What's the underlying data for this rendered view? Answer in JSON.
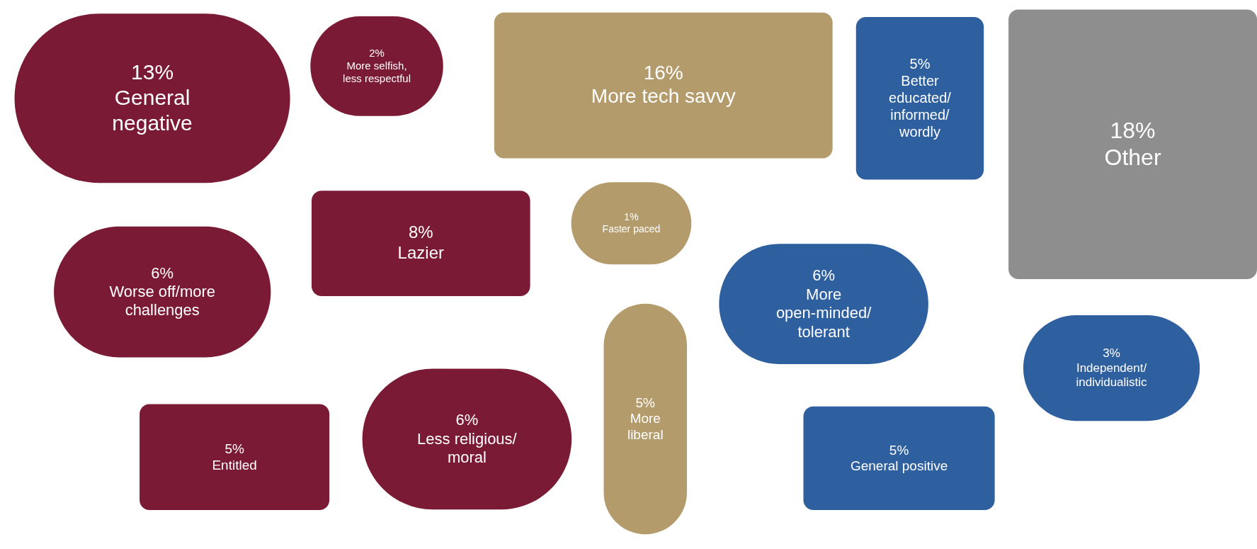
{
  "chart_data": {
    "type": "other",
    "categories": [
      "General negative",
      "More selfish, less respectful",
      "More tech savvy",
      "Better educated/informed/wordly",
      "Other",
      "Worse off/more challenges",
      "Lazier",
      "Faster paced",
      "More open-minded/tolerant",
      "Independent/individualistic",
      "Entitled",
      "Less religious/moral",
      "More liberal",
      "General positive"
    ],
    "values": [
      13,
      2,
      16,
      5,
      18,
      6,
      8,
      1,
      6,
      3,
      5,
      6,
      5,
      5
    ],
    "value_labels": [
      "13%",
      "2%",
      "16%",
      "5%",
      "18%",
      "6%",
      "8%",
      "1%",
      "6%",
      "3%",
      "5%",
      "6%",
      "5%",
      "5%"
    ],
    "colors": [
      "#7b1a34",
      "#7b1a34",
      "#b39b6b",
      "#2e5f9f",
      "#8e8e8e",
      "#7b1a34",
      "#7b1a34",
      "#b39b6b",
      "#2e5f9f",
      "#2e5f9f",
      "#7b1a34",
      "#7b1a34",
      "#b39b6b",
      "#2e5f9f"
    ]
  }
}
